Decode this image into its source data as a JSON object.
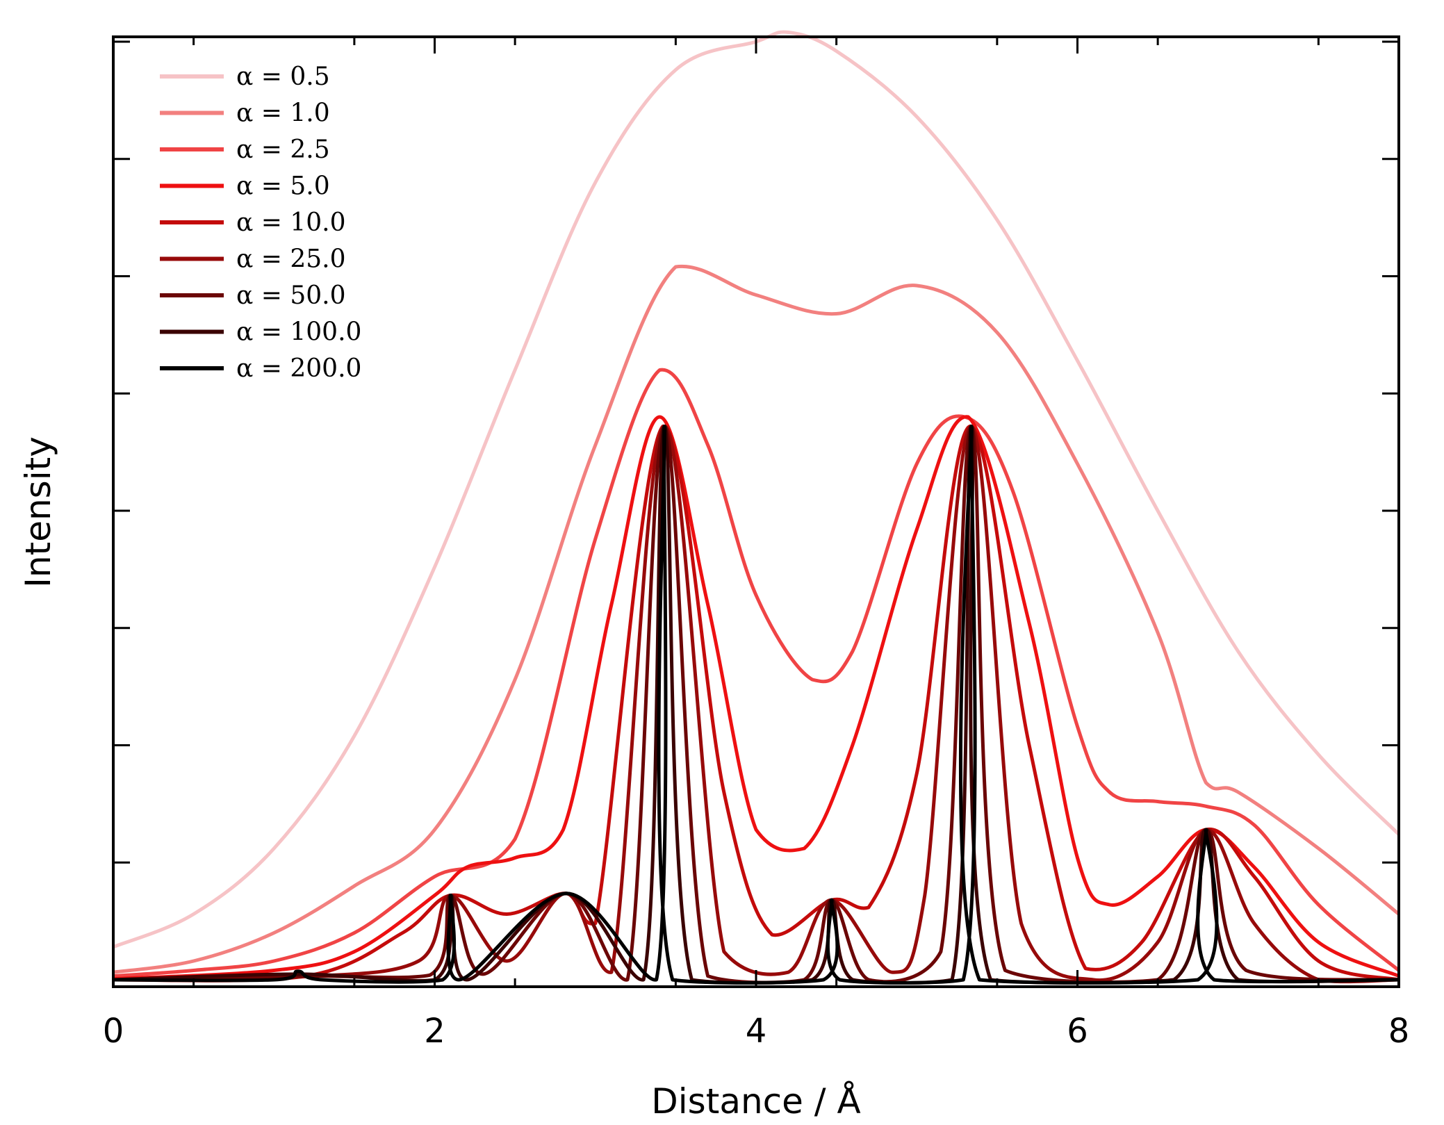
{
  "chart_data": {
    "type": "line",
    "xlabel": "Distance / Å",
    "ylabel": "Intensity",
    "xlim": [
      0,
      8
    ],
    "ylim": [
      0,
      1.0
    ],
    "xticks": [
      0,
      2,
      4,
      6,
      8
    ],
    "xtick_labels": [
      "0",
      "2",
      "4",
      "6",
      "8"
    ],
    "yticks": [
      0.125,
      0.25,
      0.375,
      0.5,
      0.625,
      0.75,
      0.875,
      1.0
    ],
    "ytick_labels_shown": false,
    "grid": false,
    "legend_position": "top-left",
    "series": [
      {
        "name": "α = 0.5",
        "color": "#f6c3c6",
        "x": [
          0.0,
          0.5,
          1.0,
          1.5,
          2.0,
          2.5,
          3.0,
          3.5,
          4.0,
          4.2,
          4.5,
          5.0,
          5.5,
          6.0,
          6.5,
          7.0,
          7.5,
          8.0
        ],
        "y": [
          0.035,
          0.07,
          0.14,
          0.26,
          0.44,
          0.65,
          0.85,
          0.97,
          1.0,
          1.01,
          0.99,
          0.92,
          0.81,
          0.66,
          0.5,
          0.35,
          0.24,
          0.155
        ]
      },
      {
        "name": "α = 1.0",
        "color": "#f2807f",
        "x": [
          0.0,
          0.5,
          1.0,
          1.5,
          2.0,
          2.5,
          3.0,
          3.5,
          4.0,
          4.5,
          5.0,
          5.5,
          6.0,
          6.5,
          6.8,
          7.0,
          7.5,
          8.0
        ],
        "y": [
          0.008,
          0.02,
          0.05,
          0.1,
          0.16,
          0.32,
          0.57,
          0.76,
          0.73,
          0.71,
          0.74,
          0.69,
          0.55,
          0.37,
          0.21,
          0.2,
          0.14,
          0.07
        ]
      },
      {
        "name": "α = 2.5",
        "color": "#f04445",
        "x": [
          0.0,
          0.5,
          1.0,
          1.5,
          2.0,
          2.5,
          3.0,
          3.4,
          3.7,
          4.0,
          4.35,
          4.6,
          5.0,
          5.3,
          5.6,
          6.0,
          6.2,
          6.5,
          6.8,
          7.1,
          7.5,
          8.0
        ],
        "y": [
          0.004,
          0.01,
          0.02,
          0.05,
          0.11,
          0.15,
          0.47,
          0.65,
          0.57,
          0.41,
          0.32,
          0.35,
          0.55,
          0.6,
          0.52,
          0.27,
          0.2,
          0.19,
          0.185,
          0.165,
          0.08,
          0.01
        ]
      },
      {
        "name": "α = 5.0",
        "color": "#ee1011",
        "x": [
          0.0,
          1.0,
          1.5,
          2.0,
          2.2,
          2.5,
          2.8,
          3.1,
          3.4,
          3.7,
          4.0,
          4.3,
          4.6,
          5.0,
          5.32,
          5.7,
          6.0,
          6.2,
          6.5,
          6.8,
          7.1,
          7.5,
          8.0
        ],
        "y": [
          0.001,
          0.01,
          0.03,
          0.09,
          0.12,
          0.13,
          0.16,
          0.4,
          0.6,
          0.4,
          0.16,
          0.14,
          0.25,
          0.48,
          0.6,
          0.38,
          0.13,
          0.08,
          0.11,
          0.16,
          0.12,
          0.04,
          0.004
        ]
      },
      {
        "name": "α = 10.0",
        "color": "#c40b0b",
        "x": [
          0.0,
          1.2,
          1.8,
          2.1,
          2.45,
          2.82,
          3.0,
          3.42,
          3.8,
          4.1,
          4.47,
          4.7,
          5.0,
          5.33,
          5.7,
          6.05,
          6.4,
          6.8,
          7.1,
          7.5,
          8.0
        ],
        "y": [
          0.0,
          0.004,
          0.05,
          0.09,
          0.07,
          0.092,
          0.06,
          0.59,
          0.2,
          0.048,
          0.085,
          0.077,
          0.22,
          0.59,
          0.25,
          0.012,
          0.04,
          0.16,
          0.11,
          0.02,
          0.0
        ]
      },
      {
        "name": "α = 25.0",
        "color": "#970a0a",
        "x": [
          0.0,
          1.15,
          1.9,
          2.1,
          2.45,
          2.82,
          3.1,
          3.43,
          3.8,
          4.2,
          4.47,
          4.85,
          5.05,
          5.34,
          5.65,
          6.1,
          6.5,
          6.8,
          7.1,
          7.5,
          8.0
        ],
        "y": [
          0.0,
          0.003,
          0.02,
          0.09,
          0.02,
          0.092,
          0.008,
          0.59,
          0.03,
          0.008,
          0.085,
          0.008,
          0.09,
          0.59,
          0.06,
          0.0,
          0.04,
          0.16,
          0.06,
          0.0,
          0.0
        ]
      },
      {
        "name": "α = 50.0",
        "color": "#6b0606",
        "x": [
          0.0,
          1.15,
          1.97,
          2.1,
          2.3,
          2.82,
          3.2,
          3.43,
          3.7,
          4.3,
          4.47,
          4.7,
          5.15,
          5.34,
          5.55,
          6.5,
          6.8,
          7.05,
          8.0
        ],
        "y": [
          0.0,
          0.004,
          0.005,
          0.09,
          0.006,
          0.092,
          0.0,
          0.59,
          0.004,
          0.0,
          0.085,
          0.0,
          0.03,
          0.59,
          0.01,
          0.0,
          0.16,
          0.01,
          0.0
        ]
      },
      {
        "name": "α = 100.0",
        "color": "#3b0303",
        "x": [
          0.0,
          1.15,
          2.0,
          2.1,
          2.2,
          2.82,
          3.3,
          3.43,
          3.6,
          4.35,
          4.47,
          4.6,
          5.22,
          5.34,
          5.46,
          6.6,
          6.8,
          7.0,
          8.0
        ],
        "y": [
          0.0,
          0.006,
          0.0,
          0.09,
          0.0,
          0.092,
          0.0,
          0.59,
          0.0,
          0.0,
          0.085,
          0.0,
          0.0,
          0.59,
          0.0,
          0.0,
          0.16,
          0.0,
          0.0
        ]
      },
      {
        "name": "α = 200.0",
        "color": "#000000",
        "x": [
          0.0,
          1.0,
          1.15,
          1.3,
          2.05,
          2.1,
          2.15,
          2.82,
          3.38,
          3.43,
          3.48,
          4.42,
          4.47,
          4.52,
          5.29,
          5.34,
          5.39,
          6.75,
          6.8,
          6.85,
          8.0
        ],
        "y": [
          0.0,
          0.0,
          0.009,
          0.0,
          0.0,
          0.09,
          0.0,
          0.092,
          0.0,
          0.59,
          0.0,
          0.0,
          0.085,
          0.0,
          0.0,
          0.59,
          0.0,
          0.0,
          0.16,
          0.0,
          0.0
        ]
      }
    ]
  }
}
